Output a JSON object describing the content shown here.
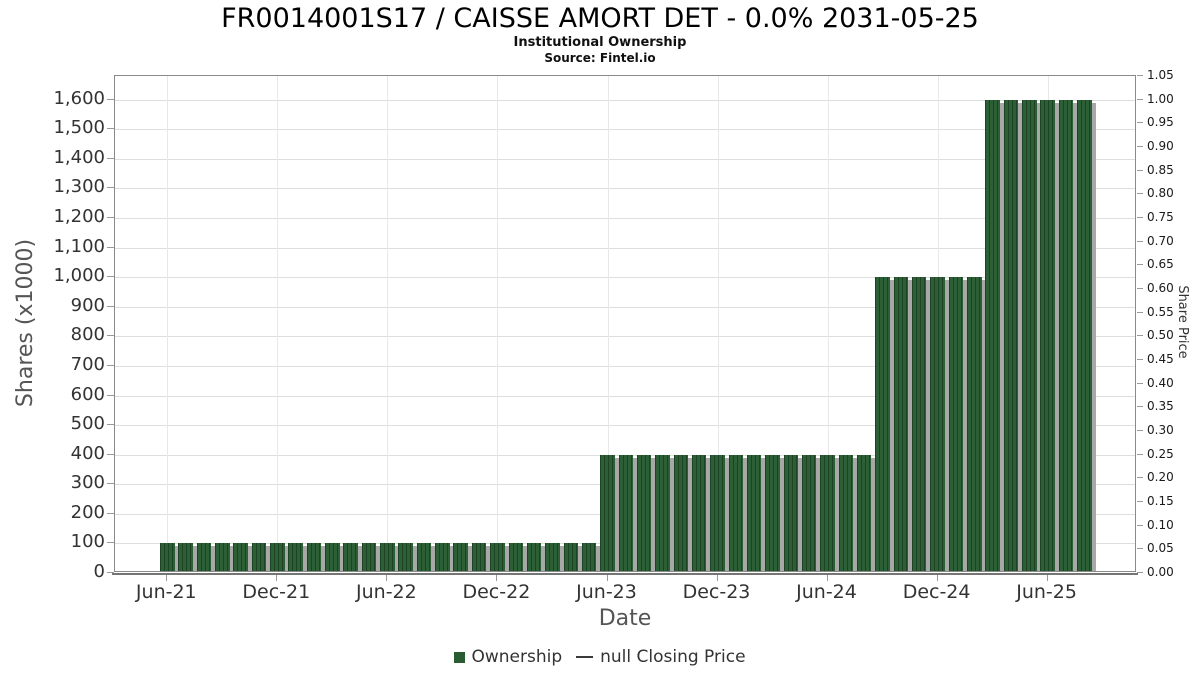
{
  "chart_data": {
    "type": "bar",
    "title": "FR0014001S17 / CAISSE AMORT DET - 0.0% 2031-05-25",
    "subtitle": "Institutional Ownership",
    "source": "Source: Fintel.io",
    "xlabel": "Date",
    "ylabel_left": "Shares (x1000)",
    "ylabel_right": "Share Price",
    "grid": true,
    "legend_position": "bottom",
    "categories": [
      "Jun-21",
      "Jul-21",
      "Aug-21",
      "Sep-21",
      "Oct-21",
      "Nov-21",
      "Dec-21",
      "Jan-22",
      "Feb-22",
      "Mar-22",
      "Apr-22",
      "May-22",
      "Jun-22",
      "Jul-22",
      "Aug-22",
      "Sep-22",
      "Oct-22",
      "Nov-22",
      "Dec-22",
      "Jan-23",
      "Feb-23",
      "Mar-23",
      "Apr-23",
      "May-23",
      "Jun-23",
      "Jul-23",
      "Aug-23",
      "Sep-23",
      "Oct-23",
      "Nov-23",
      "Dec-23",
      "Jan-24",
      "Feb-24",
      "Mar-24",
      "Apr-24",
      "May-24",
      "Jun-24",
      "Jul-24",
      "Aug-24",
      "Sep-24",
      "Oct-24",
      "Nov-24",
      "Dec-24",
      "Jan-25",
      "Feb-25",
      "Mar-25",
      "Apr-25",
      "May-25",
      "Jun-25",
      "Jul-25",
      "Aug-25"
    ],
    "series": [
      {
        "name": "Ownership",
        "type": "bar",
        "color": "#2a5c33",
        "values": [
          100,
          100,
          100,
          100,
          100,
          100,
          100,
          100,
          100,
          100,
          100,
          100,
          100,
          100,
          100,
          100,
          100,
          100,
          100,
          100,
          100,
          100,
          100,
          100,
          400,
          400,
          400,
          400,
          400,
          400,
          400,
          400,
          400,
          400,
          400,
          400,
          400,
          400,
          400,
          1000,
          1000,
          1000,
          1000,
          1000,
          1000,
          1600,
          1600,
          1600,
          1600,
          1600,
          1600
        ]
      },
      {
        "name": "null Closing Price",
        "type": "line",
        "color": "#3a3a3a",
        "values": []
      }
    ],
    "left_axis": {
      "min": 0,
      "max": 1680,
      "tick_step": 100,
      "ticks": [
        0,
        100,
        200,
        300,
        400,
        500,
        600,
        700,
        800,
        900,
        1000,
        1100,
        1200,
        1300,
        1400,
        1500,
        1600
      ]
    },
    "right_axis": {
      "min": 0,
      "max": 1.05,
      "tick_step": 0.05,
      "ticks": [
        0.0,
        0.05,
        0.1,
        0.15,
        0.2,
        0.25,
        0.3,
        0.35,
        0.4,
        0.45,
        0.5,
        0.55,
        0.6,
        0.65,
        0.7,
        0.75,
        0.8,
        0.85,
        0.9,
        0.95,
        1.0,
        1.05
      ]
    },
    "x_ticks": [
      {
        "index": 0,
        "label": "Jun-21"
      },
      {
        "index": 6,
        "label": "Dec-21"
      },
      {
        "index": 12,
        "label": "Jun-22"
      },
      {
        "index": 18,
        "label": "Dec-22"
      },
      {
        "index": 24,
        "label": "Jun-23"
      },
      {
        "index": 30,
        "label": "Dec-23"
      },
      {
        "index": 36,
        "label": "Jun-24"
      },
      {
        "index": 42,
        "label": "Dec-24"
      },
      {
        "index": 48,
        "label": "Jun-25"
      }
    ],
    "legend": [
      {
        "label": "Ownership",
        "marker": "square",
        "color": "#2a5c33"
      },
      {
        "label": "null Closing Price",
        "marker": "line",
        "color": "#3a3a3a"
      }
    ]
  }
}
